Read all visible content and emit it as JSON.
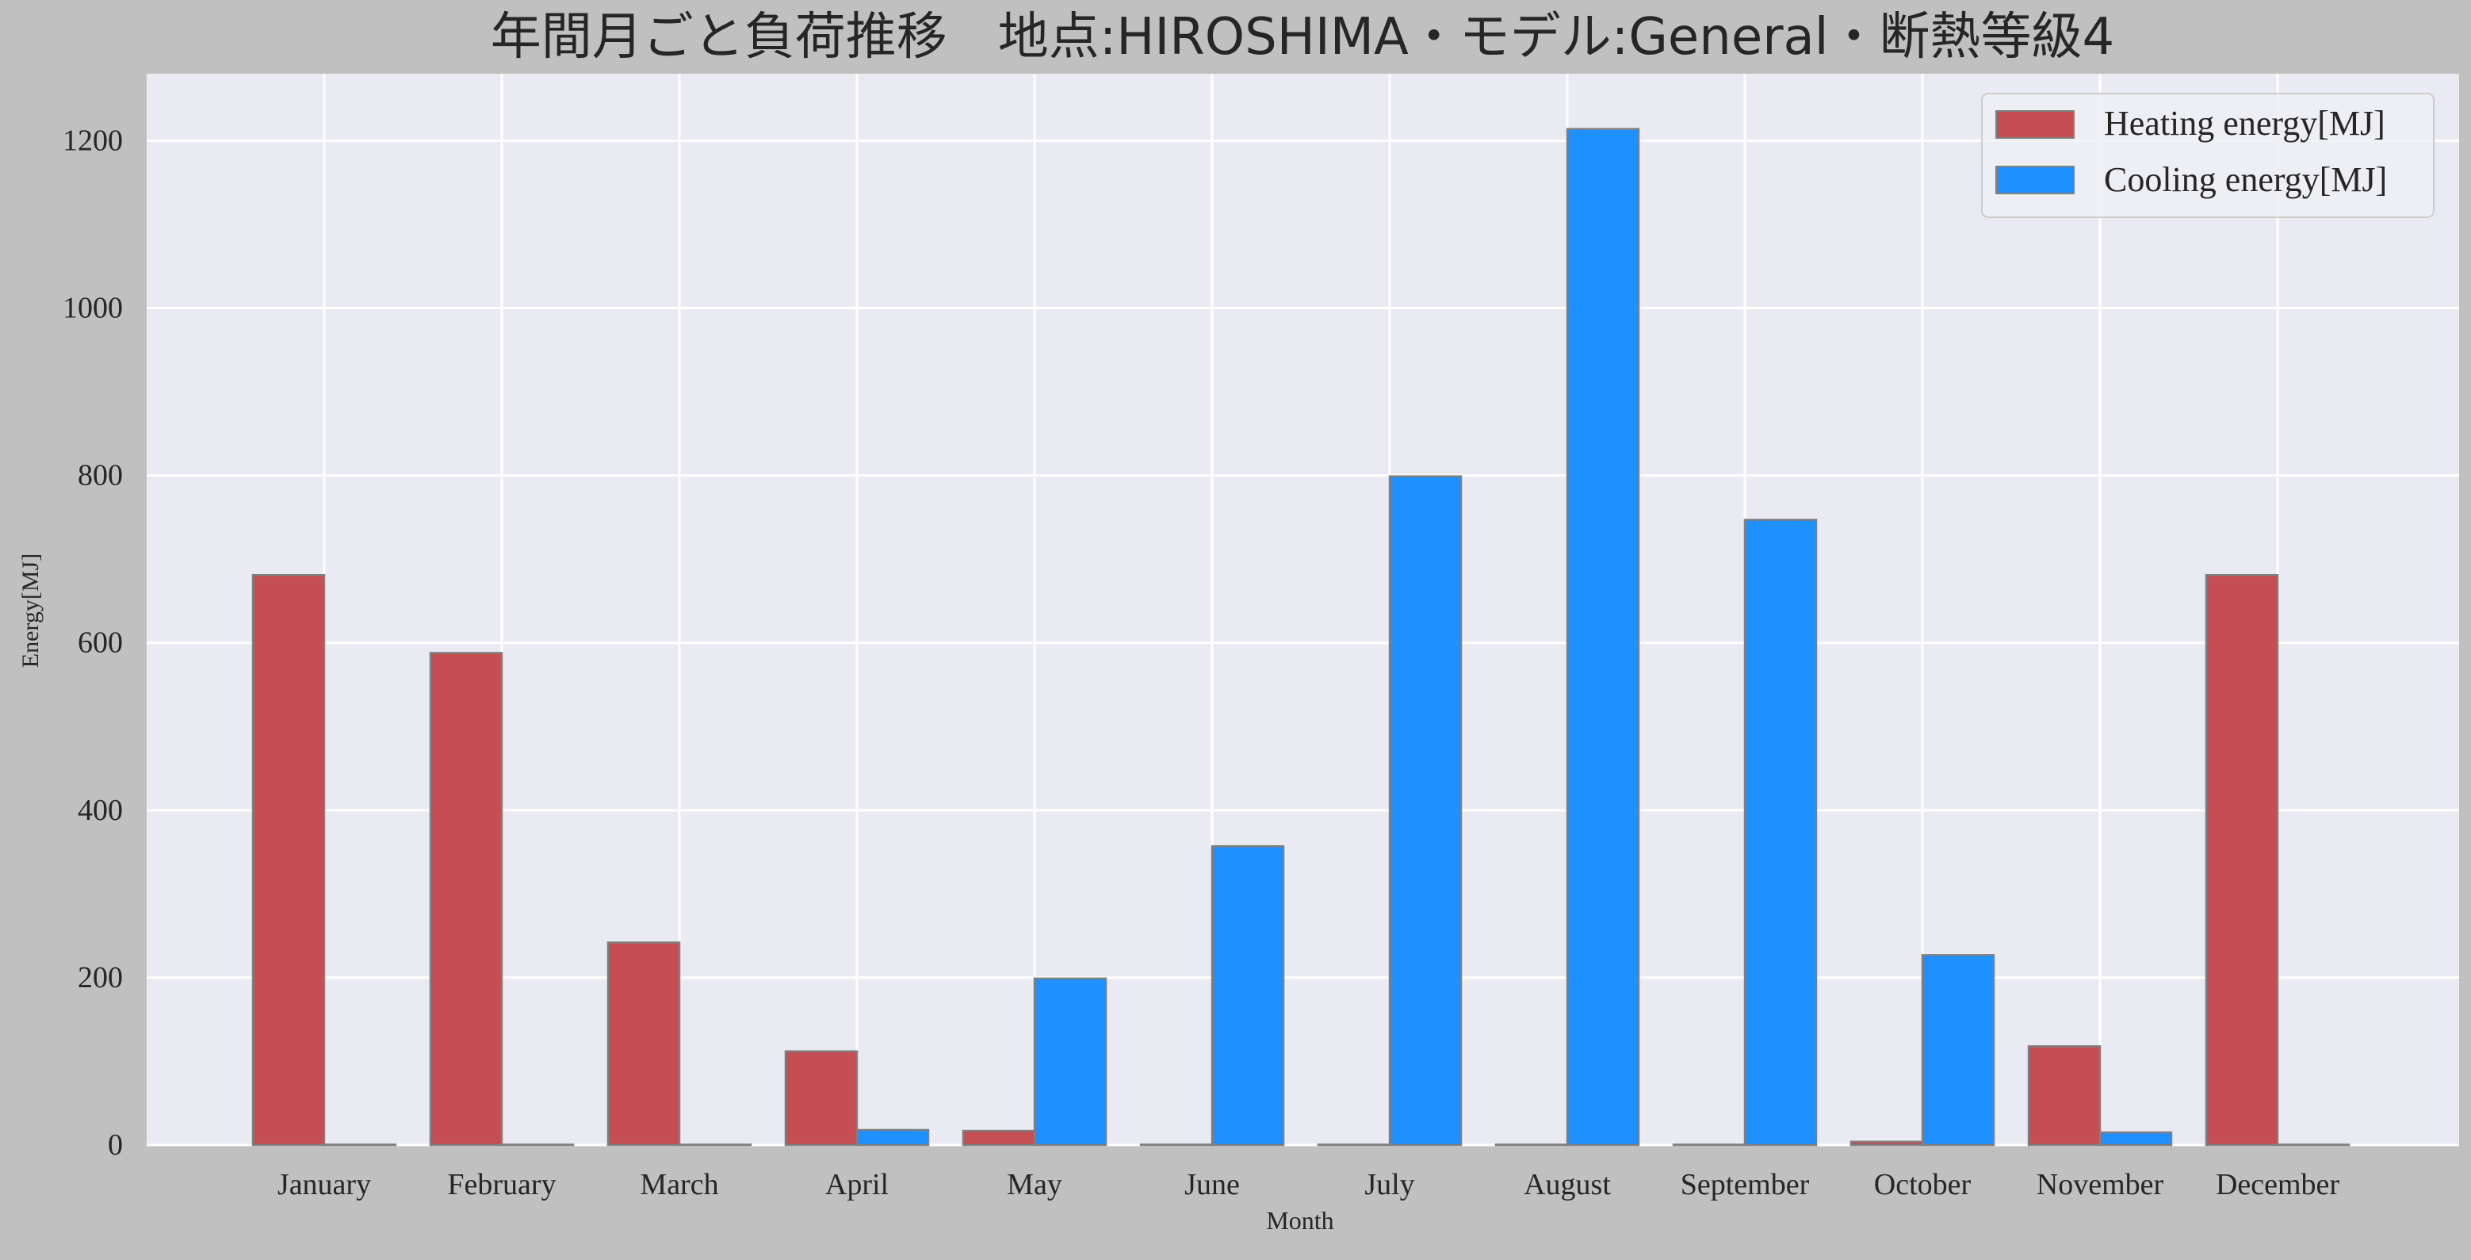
{
  "chart_data": {
    "type": "bar",
    "title": "年間月ごと負荷推移　地点:HIROSHIMA・モデル:General・断熱等級4",
    "xlabel": "Month",
    "ylabel": "Energy[MJ]",
    "categories": [
      "January",
      "February",
      "March",
      "April",
      "May",
      "June",
      "July",
      "August",
      "September",
      "October",
      "November",
      "December"
    ],
    "series": [
      {
        "name": "Heating energy[MJ]",
        "color": "#c44e52",
        "values": [
          681,
          588,
          242,
          112,
          17,
          0,
          0,
          0,
          0,
          4,
          118,
          681
        ]
      },
      {
        "name": "Cooling energy[MJ]",
        "color": "#1e90ff",
        "values": [
          0,
          0,
          0,
          18,
          199,
          357,
          799,
          1214,
          747,
          227,
          15,
          0
        ]
      }
    ],
    "ylim": [
      0,
      1280
    ],
    "yticks": [
      0,
      200,
      400,
      600,
      800,
      1000,
      1200
    ],
    "grid": true,
    "legend_position": "top-right",
    "colors": {
      "figure_background": "#c0c0c0",
      "plot_background": "#eaeaf2",
      "grid": "#ffffff",
      "bar_edge": "#7f7f7f",
      "text": "#262626"
    }
  }
}
